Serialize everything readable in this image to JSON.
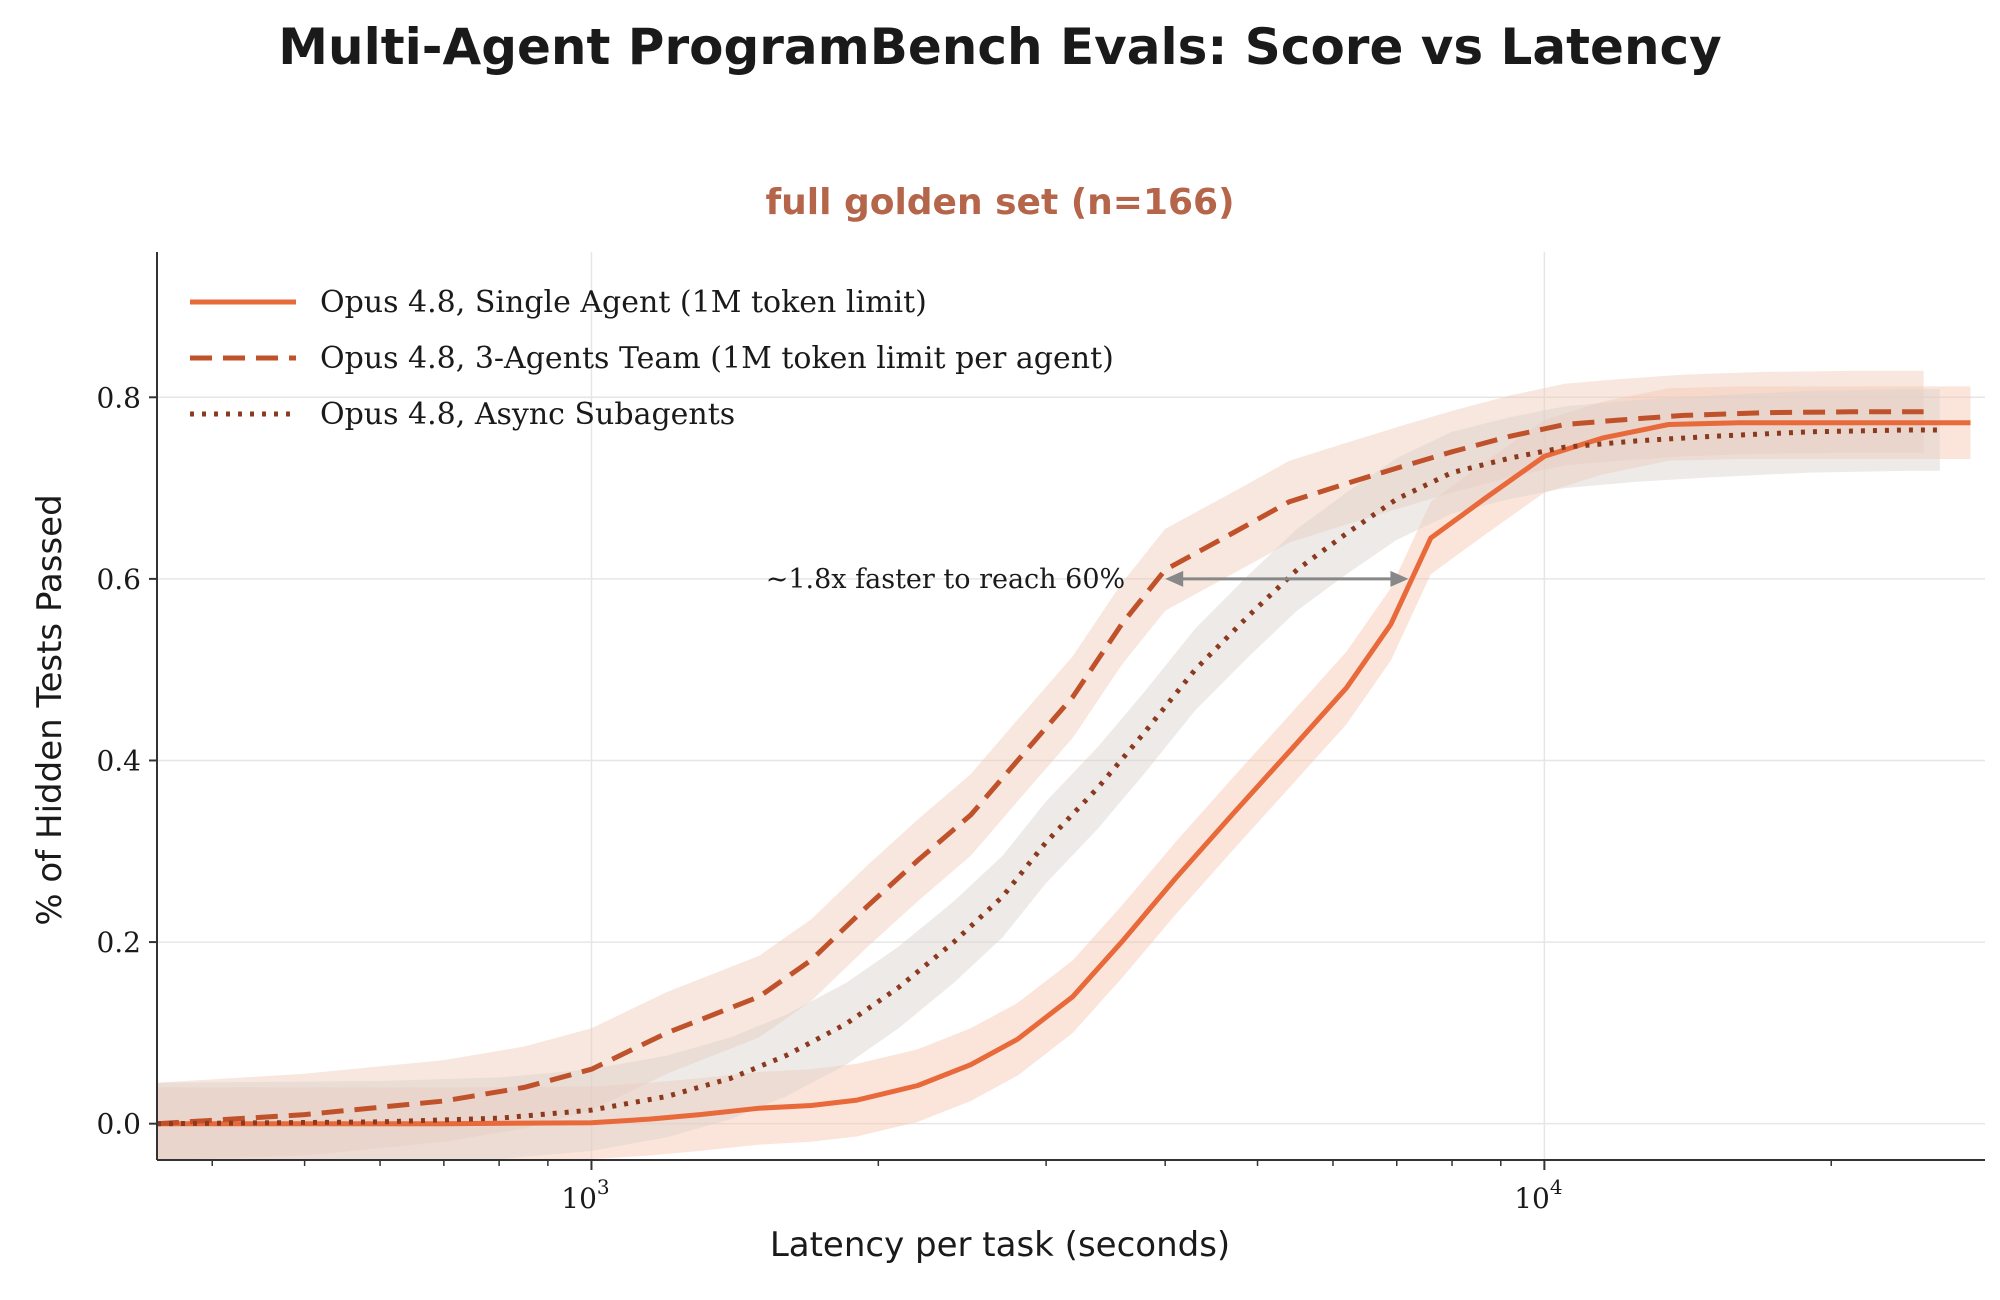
{
  "title": "Multi-Agent ProgramBench Evals: Score vs Latency",
  "chart_data": {
    "type": "line",
    "title": "full golden set (n=166)",
    "xlabel": "Latency per task (seconds)",
    "ylabel": "% of Hidden Tests Passed",
    "xscale": "log",
    "xlim": [
      350,
      29000
    ],
    "ylim": [
      -0.04,
      0.96
    ],
    "x_ticks": [
      {
        "value": 1000,
        "base": "10",
        "exp": "3"
      },
      {
        "value": 10000,
        "base": "10",
        "exp": "4"
      }
    ],
    "y_ticks": [
      {
        "value": 0.0,
        "label": "0.0"
      },
      {
        "value": 0.2,
        "label": "0.2"
      },
      {
        "value": 0.4,
        "label": "0.4"
      },
      {
        "value": 0.6,
        "label": "0.6"
      },
      {
        "value": 0.8,
        "label": "0.8"
      }
    ],
    "grid": true,
    "legend_position": "top-left",
    "series": [
      {
        "name": "Opus 4.8, Single Agent (1M token limit)",
        "style": "solid",
        "color": "#e8693a",
        "band_color": "#f6c5ae",
        "band_halfwidth": 0.04,
        "x": [
          350,
          500,
          700,
          1000,
          1150,
          1300,
          1500,
          1700,
          1900,
          2200,
          2500,
          2800,
          3200,
          3600,
          4100,
          4700,
          5400,
          6200,
          6900,
          7600,
          8700,
          10000,
          11500,
          13500,
          16000,
          20000,
          24000,
          28000
        ],
        "y": [
          0.0,
          0.0,
          0.0,
          0.001,
          0.005,
          0.01,
          0.017,
          0.02,
          0.026,
          0.042,
          0.065,
          0.093,
          0.14,
          0.2,
          0.27,
          0.34,
          0.41,
          0.48,
          0.55,
          0.645,
          0.69,
          0.735,
          0.755,
          0.77,
          0.772,
          0.772,
          0.772,
          0.772
        ]
      },
      {
        "name": "Opus 4.8, 3-Agents Team (1M token limit per agent)",
        "style": "dashed",
        "color": "#c0522b",
        "band_color": "#f0c9b6",
        "band_halfwidth": 0.045,
        "x": [
          350,
          500,
          700,
          850,
          1000,
          1200,
          1500,
          1700,
          1950,
          2200,
          2500,
          2800,
          3200,
          3600,
          4000,
          4700,
          5400,
          6200,
          7000,
          8000,
          9200,
          10500,
          12000,
          14000,
          17000,
          21000,
          25000
        ],
        "y": [
          0.0,
          0.01,
          0.025,
          0.04,
          0.06,
          0.1,
          0.14,
          0.18,
          0.24,
          0.29,
          0.34,
          0.4,
          0.47,
          0.55,
          0.61,
          0.65,
          0.685,
          0.705,
          0.722,
          0.74,
          0.757,
          0.77,
          0.775,
          0.78,
          0.783,
          0.784,
          0.784
        ]
      },
      {
        "name": "Opus 4.8, Async Subagents",
        "style": "dotted",
        "color": "#8c3a1f",
        "band_color": "#d9d1cd",
        "band_halfwidth": 0.045,
        "x": [
          350,
          600,
          800,
          1000,
          1200,
          1400,
          1600,
          1850,
          2100,
          2400,
          2700,
          3000,
          3400,
          3800,
          4300,
          4900,
          5500,
          6200,
          7000,
          8000,
          9200,
          10500,
          12500,
          15000,
          19000,
          24000,
          26000
        ],
        "y": [
          0.0,
          0.002,
          0.006,
          0.015,
          0.03,
          0.05,
          0.075,
          0.11,
          0.15,
          0.2,
          0.25,
          0.31,
          0.37,
          0.43,
          0.5,
          0.56,
          0.61,
          0.65,
          0.688,
          0.717,
          0.733,
          0.745,
          0.752,
          0.757,
          0.762,
          0.764,
          0.764
        ]
      }
    ],
    "annotation": {
      "text": "~1.8x faster to reach 60%",
      "y": 0.6,
      "x_from": 4000,
      "x_to": 7200
    }
  }
}
